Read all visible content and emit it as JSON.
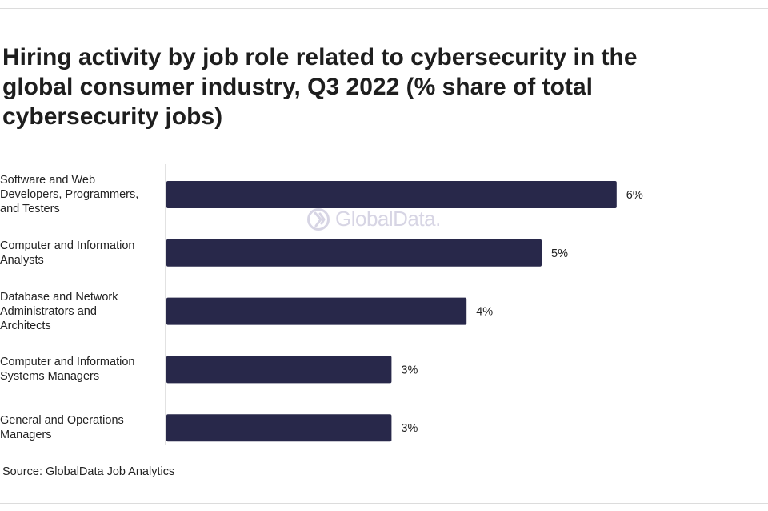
{
  "title": "Hiring activity by job role related to cybersecurity in the global consumer industry, Q3 2022 (% share of total cybersecurity jobs)",
  "source": "Source: GlobalData Job Analytics",
  "watermark": {
    "text": "GlobalData.",
    "icon": "globaldata-logo-icon"
  },
  "colors": {
    "bar": "#28284a",
    "axis": "#d9d9d9",
    "text": "#222222"
  },
  "chart_data": {
    "type": "bar",
    "orientation": "horizontal",
    "title": "Hiring activity by job role related to cybersecurity in the global consumer industry, Q3 2022 (% share of total cybersecurity jobs)",
    "categories": [
      "Software and Web Developers, Programmers, and Testers",
      "Computer and Information Analysts",
      "Database and Network Administrators and Architects",
      "Computer and Information Systems Managers",
      "General and Operations Managers"
    ],
    "category_lines": [
      [
        "Software and Web",
        "Developers, Programmers,",
        "and Testers"
      ],
      [
        "Computer and Information",
        "Analysts"
      ],
      [
        "Database and Network",
        "Administrators and",
        "Architects"
      ],
      [
        "Computer and Information",
        "Systems Managers"
      ],
      [
        "General and Operations",
        "Managers"
      ]
    ],
    "values": [
      6,
      5,
      4,
      3,
      3
    ],
    "value_labels": [
      "6%",
      "5%",
      "4%",
      "3%",
      "3%"
    ],
    "xlabel": "",
    "ylabel": "",
    "unit": "%",
    "grid": false,
    "legend": "none"
  }
}
